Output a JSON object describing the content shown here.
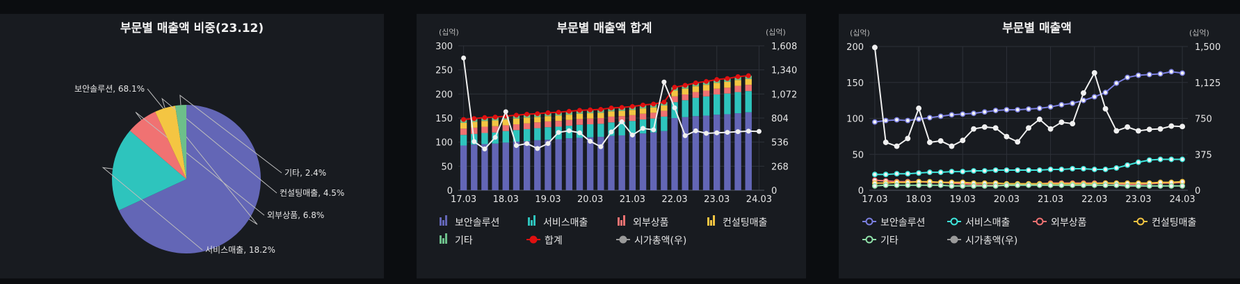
{
  "chart_data": [
    {
      "type": "pie",
      "title": "부문별 매출액 비중(23.12)",
      "slices": [
        {
          "label": "보안솔루션, 68.1%",
          "value": 68.1,
          "color": "#6366b6"
        },
        {
          "label": "서비스매출, 18.2%",
          "value": 18.2,
          "color": "#2ec4bd"
        },
        {
          "label": "외부상품, 6.8%",
          "value": 6.8,
          "color": "#f07272"
        },
        {
          "label": "컨설팅매출, 4.5%",
          "value": 4.5,
          "color": "#f4c542"
        },
        {
          "label": "기타, 2.4%",
          "value": 2.4,
          "color": "#6dbf8a"
        }
      ]
    },
    {
      "type": "bar",
      "title": "부문별 매출액 합계",
      "unit_left": "(십억)",
      "unit_right": "(십억)",
      "ylim": [
        0,
        300
      ],
      "y2lim": [
        0,
        1608
      ],
      "yticks": [
        0,
        50,
        100,
        150,
        200,
        250,
        300
      ],
      "y2ticks": [
        "0",
        "268",
        "536",
        "804",
        "1,072",
        "1,340",
        "1,608"
      ],
      "xticks": [
        "17.03",
        "18.03",
        "19.03",
        "20.03",
        "21.03",
        "22.03",
        "23.03",
        "24.03"
      ],
      "categories": [
        "17.03",
        "17.06",
        "17.09",
        "17.12",
        "18.03",
        "18.06",
        "18.09",
        "18.12",
        "19.03",
        "19.06",
        "19.09",
        "19.12",
        "20.03",
        "20.06",
        "20.09",
        "20.12",
        "21.03",
        "21.06",
        "21.09",
        "21.12",
        "22.03",
        "22.06",
        "22.09",
        "22.12",
        "23.03",
        "23.06",
        "23.09",
        "23.12",
        "24.03"
      ],
      "stack_series": [
        {
          "name": "보안솔루션",
          "color": "#6366b6",
          "values": [
            93,
            95,
            96,
            97,
            99,
            101,
            102,
            104,
            105,
            106,
            108,
            109,
            110,
            111,
            113,
            114,
            116,
            118,
            120,
            123,
            150,
            152,
            154,
            155,
            157,
            158,
            160,
            162,
            null
          ]
        },
        {
          "name": "서비스매출",
          "color": "#2ec4bd",
          "values": [
            22,
            22,
            23,
            23,
            24,
            24,
            25,
            25,
            26,
            26,
            26,
            27,
            27,
            27,
            28,
            28,
            28,
            29,
            29,
            30,
            33,
            35,
            38,
            40,
            42,
            43,
            44,
            44,
            null
          ]
        },
        {
          "name": "외부상품",
          "color": "#f07272",
          "values": [
            13,
            13,
            13,
            13,
            12,
            12,
            12,
            12,
            12,
            12,
            12,
            12,
            12,
            12,
            12,
            12,
            12,
            12,
            12,
            12,
            12,
            12,
            12,
            12,
            12,
            12,
            13,
            13,
            null
          ]
        },
        {
          "name": "컨설팅매출",
          "color": "#f4c542",
          "values": [
            12,
            12,
            12,
            12,
            12,
            12,
            12,
            11,
            11,
            11,
            11,
            11,
            11,
            11,
            11,
            11,
            11,
            11,
            11,
            11,
            12,
            12,
            12,
            12,
            12,
            12,
            12,
            12,
            null
          ]
        },
        {
          "name": "기타",
          "color": "#6dbf8a",
          "values": [
            7,
            7,
            7,
            7,
            7,
            7,
            7,
            7,
            7,
            7,
            7,
            7,
            7,
            7,
            7,
            7,
            7,
            7,
            7,
            7,
            7,
            7,
            7,
            7,
            7,
            7,
            7,
            7,
            null
          ]
        }
      ],
      "total": {
        "name": "합계",
        "color": "#e01010",
        "values": [
          147,
          149,
          151,
          152,
          154,
          156,
          158,
          159,
          161,
          162,
          164,
          166,
          167,
          168,
          171,
          172,
          174,
          177,
          179,
          183,
          214,
          218,
          223,
          226,
          230,
          232,
          236,
          238,
          null
        ]
      },
      "market_cap": {
        "name": "시가총액(우)",
        "color": "#f0f0f0",
        "values": [
          1473,
          542,
          460,
          589,
          875,
          498,
          520,
          465,
          520,
          644,
          663,
          640,
          545,
          485,
          649,
          762,
          615,
          689,
          673,
          1205,
          918,
          608,
          662,
          634,
          640,
          645,
          652,
          658,
          655
        ]
      }
    },
    {
      "type": "line",
      "title": "부문별 매출액",
      "unit_left": "(십억)",
      "unit_right": "(십억)",
      "ylim": [
        0,
        200
      ],
      "y2lim": [
        0,
        1500
      ],
      "yticks": [
        0,
        50,
        100,
        150,
        200
      ],
      "y2ticks": [
        "0",
        "375",
        "750",
        "1,125",
        "1,500"
      ],
      "xticks": [
        "17.03",
        "18.03",
        "19.03",
        "20.03",
        "21.03",
        "22.03",
        "23.03",
        "24.03"
      ],
      "categories": [
        "17.03",
        "17.06",
        "17.09",
        "17.12",
        "18.03",
        "18.06",
        "18.09",
        "18.12",
        "19.03",
        "19.06",
        "19.09",
        "19.12",
        "20.03",
        "20.06",
        "20.09",
        "20.12",
        "21.03",
        "21.06",
        "21.09",
        "21.12",
        "22.03",
        "22.06",
        "22.09",
        "22.12",
        "23.03",
        "23.06",
        "23.09",
        "23.12",
        "24.03"
      ],
      "series": [
        {
          "name": "보안솔루션",
          "color": "#7b7fe0",
          "values": [
            95,
            97,
            98,
            97,
            99,
            101,
            103,
            105,
            106,
            107,
            109,
            111,
            112,
            112,
            113,
            114,
            116,
            119,
            121,
            125,
            130,
            136,
            149,
            157,
            160,
            161,
            162,
            165,
            163
          ]
        },
        {
          "name": "서비스매출",
          "color": "#3ee6dc",
          "values": [
            22,
            22,
            23,
            23,
            24,
            25,
            25,
            26,
            26,
            27,
            27,
            28,
            28,
            28,
            28,
            28,
            29,
            29,
            30,
            30,
            29,
            29,
            31,
            35,
            39,
            42,
            43,
            43,
            43
          ]
        },
        {
          "name": "외부상품",
          "color": "#f07272",
          "values": [
            14,
            13,
            12,
            12,
            12,
            11,
            11,
            10,
            9,
            8,
            7,
            7,
            7,
            7,
            8,
            9,
            10,
            10,
            10,
            10,
            10,
            10,
            9,
            8,
            8,
            9,
            10,
            10,
            11
          ]
        },
        {
          "name": "컨설팅매출",
          "color": "#f4c542",
          "values": [
            10,
            10,
            11,
            11,
            12,
            12,
            11,
            11,
            11,
            10,
            10,
            10,
            9,
            9,
            9,
            9,
            9,
            9,
            9,
            9,
            9,
            10,
            10,
            10,
            10,
            10,
            11,
            11,
            12
          ]
        },
        {
          "name": "기타",
          "color": "#8fe0a8",
          "values": [
            6,
            7,
            7,
            7,
            7,
            7,
            7,
            6,
            6,
            6,
            6,
            6,
            7,
            7,
            7,
            7,
            7,
            7,
            7,
            7,
            7,
            7,
            7,
            6,
            6,
            6,
            6,
            6,
            6
          ]
        },
        {
          "name": "시가총액(우)",
          "color": "#f0f0f0",
          "axis": "right",
          "values": [
            1490,
            500,
            460,
            540,
            855,
            500,
            515,
            460,
            520,
            640,
            660,
            650,
            560,
            505,
            650,
            740,
            640,
            710,
            695,
            1015,
            1225,
            850,
            620,
            660,
            620,
            635,
            640,
            670,
            665
          ]
        }
      ]
    }
  ]
}
